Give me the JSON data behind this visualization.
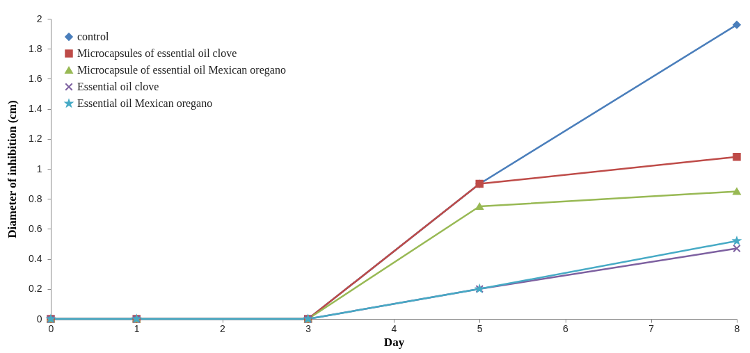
{
  "chart_data": {
    "type": "line",
    "xlabel": "Day",
    "ylabel": "Diameter of inhibition (cm)",
    "xlim": [
      0,
      8
    ],
    "xticks": [
      0,
      1,
      2,
      3,
      4,
      5,
      6,
      7,
      8
    ],
    "ylim": [
      0,
      2
    ],
    "yticks": [
      0,
      0.2,
      0.4,
      0.6,
      0.8,
      1,
      1.2,
      1.4,
      1.6,
      1.8,
      2
    ],
    "grid": false,
    "legend": "top left",
    "x": [
      0,
      1,
      3,
      5,
      8
    ],
    "series": [
      {
        "name": "control",
        "color": "#4a7ebb",
        "marker": "diamond",
        "values": [
          0,
          0,
          0,
          0.9,
          1.96
        ]
      },
      {
        "name": "Microcapsules of essential oil clove",
        "color": "#be4b48",
        "marker": "square",
        "values": [
          0,
          0,
          0,
          0.9,
          1.08
        ]
      },
      {
        "name": "Microcapsule of essential oil Mexican oregano",
        "color": "#98b954",
        "marker": "triangle",
        "values": [
          0,
          0,
          0,
          0.75,
          0.85
        ]
      },
      {
        "name": "Essential oil clove",
        "color": "#7d60a0",
        "marker": "cross",
        "values": [
          0,
          0,
          0,
          0.2,
          0.47
        ]
      },
      {
        "name": "Essential oil Mexican oregano",
        "color": "#46aac5",
        "marker": "star",
        "values": [
          0,
          0,
          0,
          0.2,
          0.52
        ]
      }
    ]
  }
}
